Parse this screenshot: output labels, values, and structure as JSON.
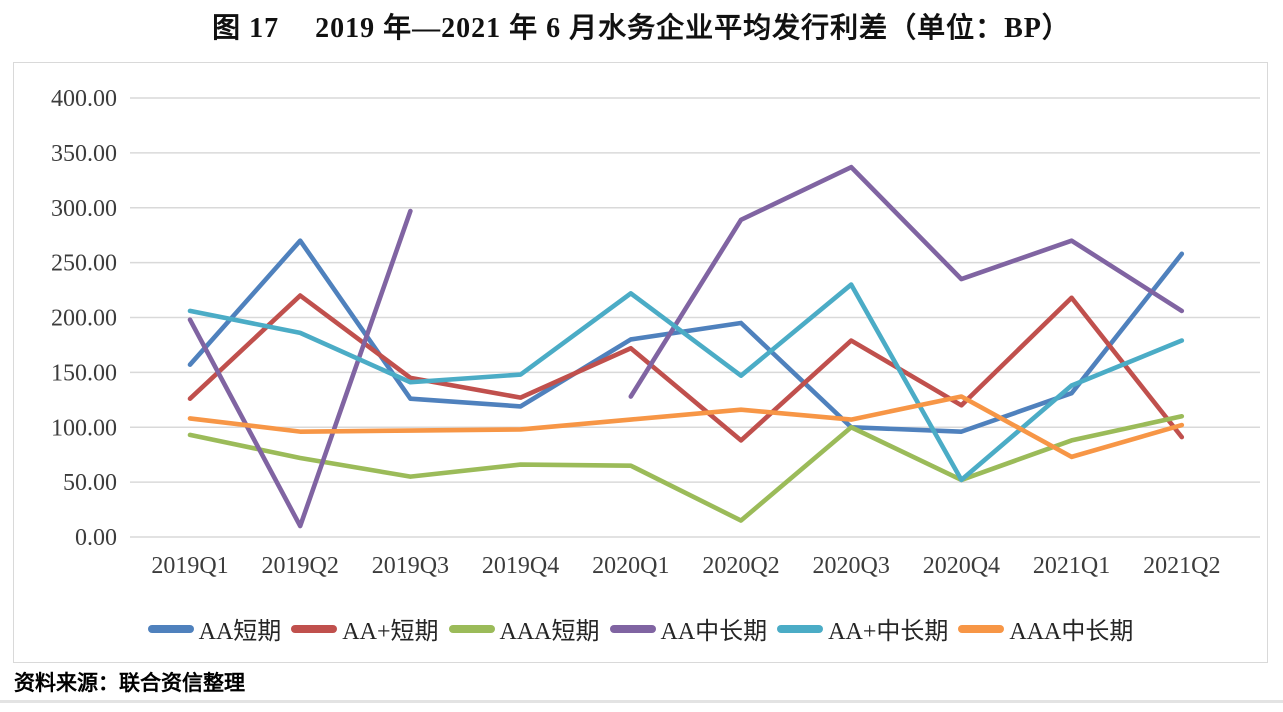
{
  "page": {
    "title_prefix": "图 17",
    "title_main": "2019 年—2021 年 6 月水务企业平均发行利差（单位：BP）",
    "source_note": "资料来源：联合资信整理"
  },
  "chart_data": {
    "type": "line",
    "title": "2019 年—2021 年 6 月水务企业平均发行利差（单位：BP）",
    "xlabel": "",
    "ylabel": "",
    "ylim": [
      0,
      400
    ],
    "ytick_step": 50,
    "ytick_decimals": 2,
    "grid": true,
    "legend_position": "bottom",
    "categories": [
      "2019Q1",
      "2019Q2",
      "2019Q3",
      "2019Q4",
      "2020Q1",
      "2020Q2",
      "2020Q3",
      "2020Q4",
      "2021Q1",
      "2021Q2"
    ],
    "series": [
      {
        "name": "AA短期",
        "key": "aa-short-term",
        "color": "#4F81BD",
        "values": [
          157,
          270,
          126,
          119,
          180,
          195,
          100,
          96,
          131,
          258
        ]
      },
      {
        "name": "AA+短期",
        "key": "aa-plus-short-term",
        "color": "#C0504D",
        "values": [
          126,
          220,
          145,
          127,
          172,
          88,
          179,
          120,
          218,
          91
        ]
      },
      {
        "name": "AAA短期",
        "key": "aaa-short-term",
        "color": "#9BBB59",
        "values": [
          93,
          72,
          55,
          66,
          65,
          15,
          100,
          52,
          88,
          110
        ]
      },
      {
        "name": "AA中长期",
        "key": "aa-mid-long-term",
        "color": "#8064A2",
        "values": [
          198,
          10,
          297,
          null,
          128,
          289,
          337,
          235,
          270,
          206
        ]
      },
      {
        "name": "AA+中长期",
        "key": "aa-plus-mid-long-term",
        "color": "#4BACC6",
        "values": [
          206,
          186,
          141,
          148,
          222,
          147,
          230,
          52,
          138,
          179
        ]
      },
      {
        "name": "AAA中长期",
        "key": "aaa-mid-long-term",
        "color": "#F79646",
        "values": [
          108,
          96,
          97,
          98,
          107,
          116,
          107,
          128,
          73,
          102
        ]
      }
    ]
  },
  "colors": {
    "gridline": "#d9d9d9",
    "axis_text": "#3c3c3c",
    "chart_border": "#d9d9d9"
  }
}
